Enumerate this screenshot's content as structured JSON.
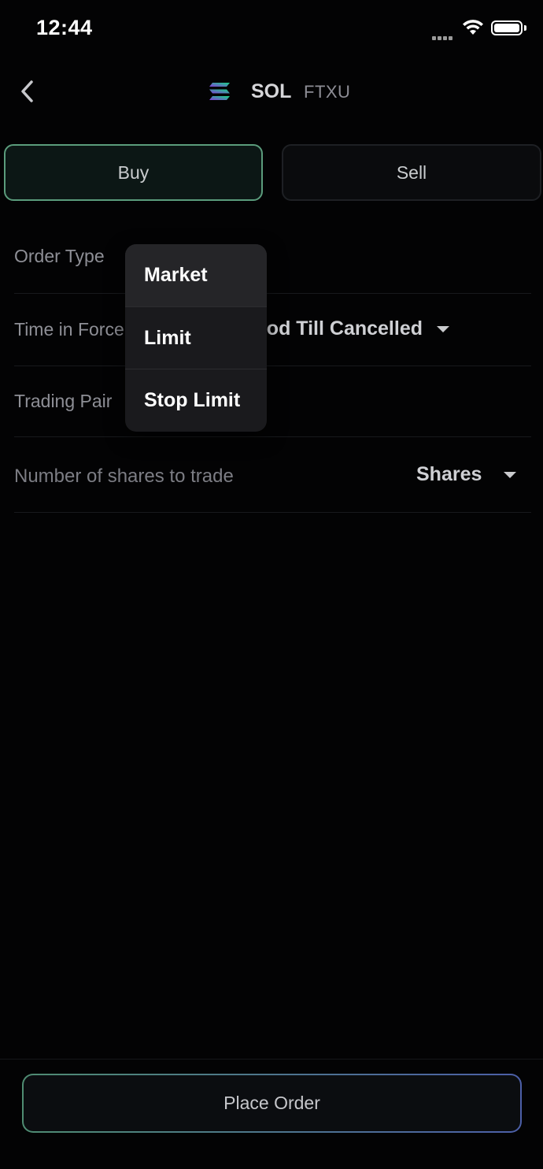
{
  "status_bar": {
    "time": "12:44"
  },
  "header": {
    "symbol": "SOL",
    "name": "FTXU",
    "icons": {
      "back": "chevron-left-icon",
      "logo": "solana-logo-icon"
    }
  },
  "side_tabs": {
    "buy": "Buy",
    "sell": "Sell",
    "selected": "Buy"
  },
  "form": {
    "order_type": {
      "label": "Order Type"
    },
    "time_in_force": {
      "label": "Time in Force",
      "value": "Good Till Cancelled"
    },
    "trading_pair": {
      "label": "Trading Pair"
    },
    "shares": {
      "placeholder": "Number of shares to trade",
      "unit": "Shares"
    }
  },
  "order_type_menu": {
    "options": [
      "Market",
      "Limit",
      "Stop Limit"
    ],
    "highlighted": "Market"
  },
  "footer": {
    "place_order": "Place Order"
  },
  "colors": {
    "background": "#030304",
    "buy_border": "#5b9c7c",
    "accent_gradient_start": "#4f8c72",
    "accent_gradient_end": "#4c5fa8"
  }
}
